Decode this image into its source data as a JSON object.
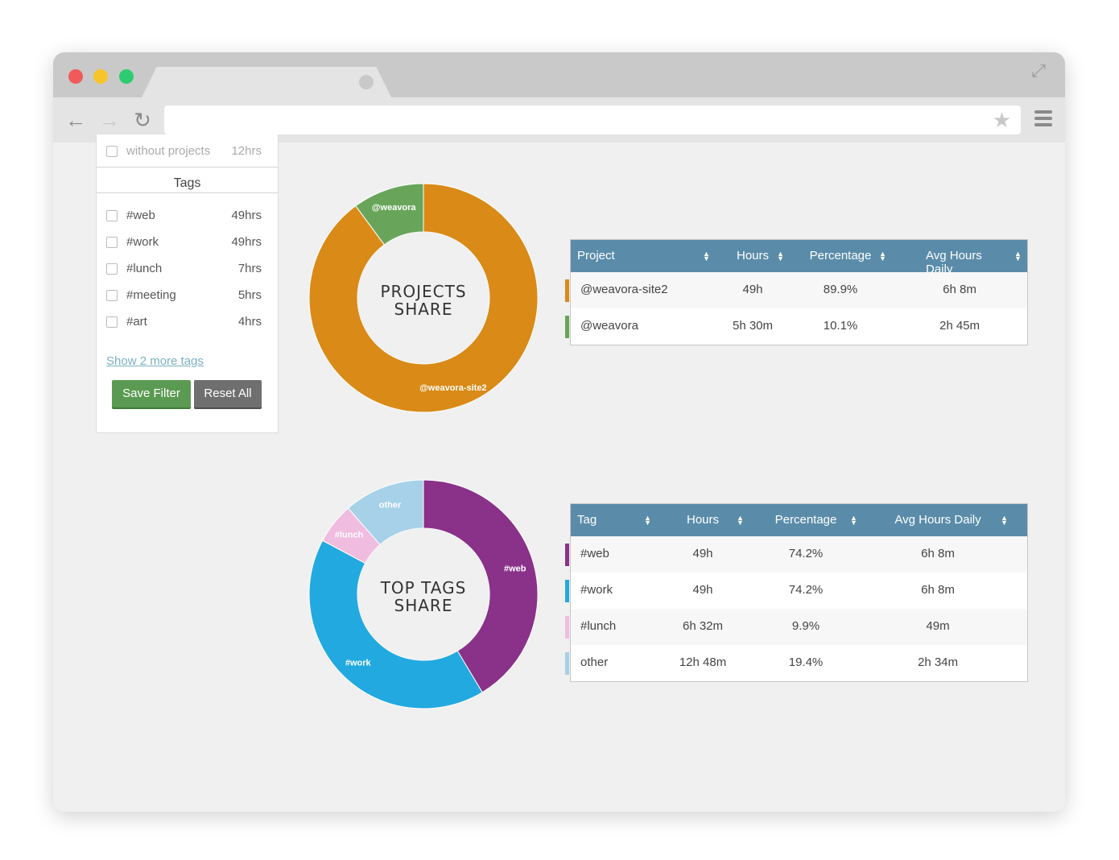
{
  "filters": {
    "without_projects": {
      "label": "without projects",
      "hours": "12hrs"
    },
    "tags_title": "Tags",
    "tags": [
      {
        "label": "#web",
        "hours": "49hrs"
      },
      {
        "label": "#work",
        "hours": "49hrs"
      },
      {
        "label": "#lunch",
        "hours": "7hrs"
      },
      {
        "label": "#meeting",
        "hours": "5hrs"
      },
      {
        "label": "#art",
        "hours": "4hrs"
      }
    ],
    "more_link": "Show 2 more tags",
    "save_label": "Save Filter",
    "reset_label": "Reset All"
  },
  "projects_chart": {
    "title_line1": "PROJECTS",
    "title_line2": "SHARE",
    "slices": [
      {
        "label": "@weavora-site2",
        "value": 89.9,
        "color": "#d98a17"
      },
      {
        "label": "@weavora",
        "value": 10.1,
        "color": "#68a55a"
      }
    ]
  },
  "tags_chart": {
    "title_line1": "TOP TAGS",
    "title_line2": "SHARE",
    "slices": [
      {
        "label": "#web",
        "value": 38,
        "color": "#8a318a"
      },
      {
        "label": "#work",
        "value": 38,
        "color": "#22a9e0"
      },
      {
        "label": "#lunch",
        "value": 5.3,
        "color": "#f0bcdf"
      },
      {
        "label": "other",
        "value": 10.5,
        "color": "#a6d1e8"
      }
    ]
  },
  "projects_table": {
    "headers": [
      "Project",
      "Hours",
      "Percentage",
      "Avg Hours Daily"
    ],
    "rows": [
      {
        "name": "@weavora-site2",
        "hours": "49h",
        "percentage": "89.9%",
        "avg": "6h 8m",
        "color": "#d98a17"
      },
      {
        "name": "@weavora",
        "hours": "5h 30m",
        "percentage": "10.1%",
        "avg": "2h 45m",
        "color": "#68a55a"
      }
    ]
  },
  "tags_table": {
    "headers": [
      "Tag",
      "Hours",
      "Percentage",
      "Avg Hours Daily"
    ],
    "rows": [
      {
        "name": "#web",
        "hours": "49h",
        "percentage": "74.2%",
        "avg": "6h 8m",
        "color": "#8a318a"
      },
      {
        "name": "#work",
        "hours": "49h",
        "percentage": "74.2%",
        "avg": "6h 8m",
        "color": "#22a9e0"
      },
      {
        "name": "#lunch",
        "hours": "6h 32m",
        "percentage": "9.9%",
        "avg": "49m",
        "color": "#f0bcdf"
      },
      {
        "name": "other",
        "hours": "12h 48m",
        "percentage": "19.4%",
        "avg": "2h 34m",
        "color": "#a6d1e8"
      }
    ]
  }
}
